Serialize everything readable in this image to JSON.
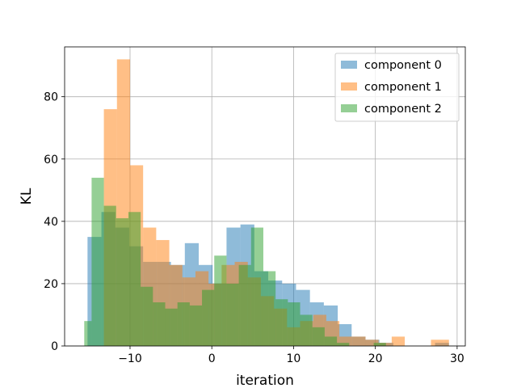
{
  "chart_data": {
    "type": "bar",
    "subtype": "overlapping-histogram",
    "title": "",
    "xlabel": "iteration",
    "ylabel": "KL",
    "xlim": [
      -18,
      31
    ],
    "ylim": [
      0,
      96
    ],
    "xticks": [
      -10,
      0,
      10,
      20,
      30
    ],
    "xtick_labels": [
      "−10",
      "0",
      "10",
      "20",
      "30"
    ],
    "yticks": [
      0,
      20,
      40,
      60,
      80
    ],
    "ytick_labels": [
      "0",
      "20",
      "40",
      "60",
      "80"
    ],
    "grid": true,
    "legend_position": "top-right",
    "series": [
      {
        "name": "component 0",
        "color": "#1f77b4",
        "opacity": 0.5,
        "bin_edges": [
          -15.2,
          -13.5,
          -11.8,
          -10.1,
          -8.4,
          -6.7,
          -5.0,
          -3.3,
          -1.6,
          0.1,
          1.8,
          3.5,
          5.2,
          6.9,
          8.6,
          10.3,
          12.0,
          13.7,
          15.4,
          17.1,
          18.8,
          20.5,
          22.2,
          23.9,
          25.6,
          27.3,
          29.0
        ],
        "counts": [
          35,
          43,
          38,
          32,
          27,
          27,
          26,
          33,
          26,
          20,
          38,
          39,
          24,
          21,
          20,
          18,
          14,
          13,
          7,
          3,
          2,
          1,
          0,
          0,
          0,
          1
        ]
      },
      {
        "name": "component 1",
        "color": "#ff7f0e",
        "opacity": 0.5,
        "bin_edges": [
          -13.2,
          -11.6,
          -10.0,
          -8.4,
          -6.8,
          -5.2,
          -3.6,
          -2.0,
          -0.4,
          1.2,
          2.8,
          4.4,
          6.0,
          7.6,
          9.2,
          10.8,
          12.4,
          14.0,
          15.6,
          17.2,
          18.8,
          20.4,
          22.0,
          23.6,
          25.2,
          26.8,
          28.4,
          29.0
        ],
        "counts": [
          76,
          92,
          58,
          38,
          34,
          26,
          22,
          24,
          20,
          26,
          27,
          22,
          16,
          12,
          6,
          8,
          10,
          8,
          3,
          3,
          2,
          1,
          3,
          0,
          0,
          2,
          2
        ]
      },
      {
        "name": "component 2",
        "color": "#2ca02c",
        "opacity": 0.5,
        "bin_edges": [
          -15.6,
          -14.7,
          -13.2,
          -11.7,
          -10.2,
          -8.7,
          -7.2,
          -5.7,
          -4.2,
          -2.7,
          -1.2,
          0.3,
          1.8,
          3.3,
          4.8,
          6.3,
          7.8,
          9.3,
          10.8,
          12.3,
          13.8,
          15.3,
          16.8,
          18.3,
          19.8,
          21.3,
          22.8,
          24.3
        ],
        "counts": [
          8,
          54,
          45,
          41,
          43,
          19,
          14,
          12,
          14,
          13,
          18,
          29,
          20,
          26,
          38,
          24,
          15,
          14,
          10,
          6,
          3,
          1,
          0,
          0,
          1,
          0,
          0
        ]
      }
    ]
  }
}
